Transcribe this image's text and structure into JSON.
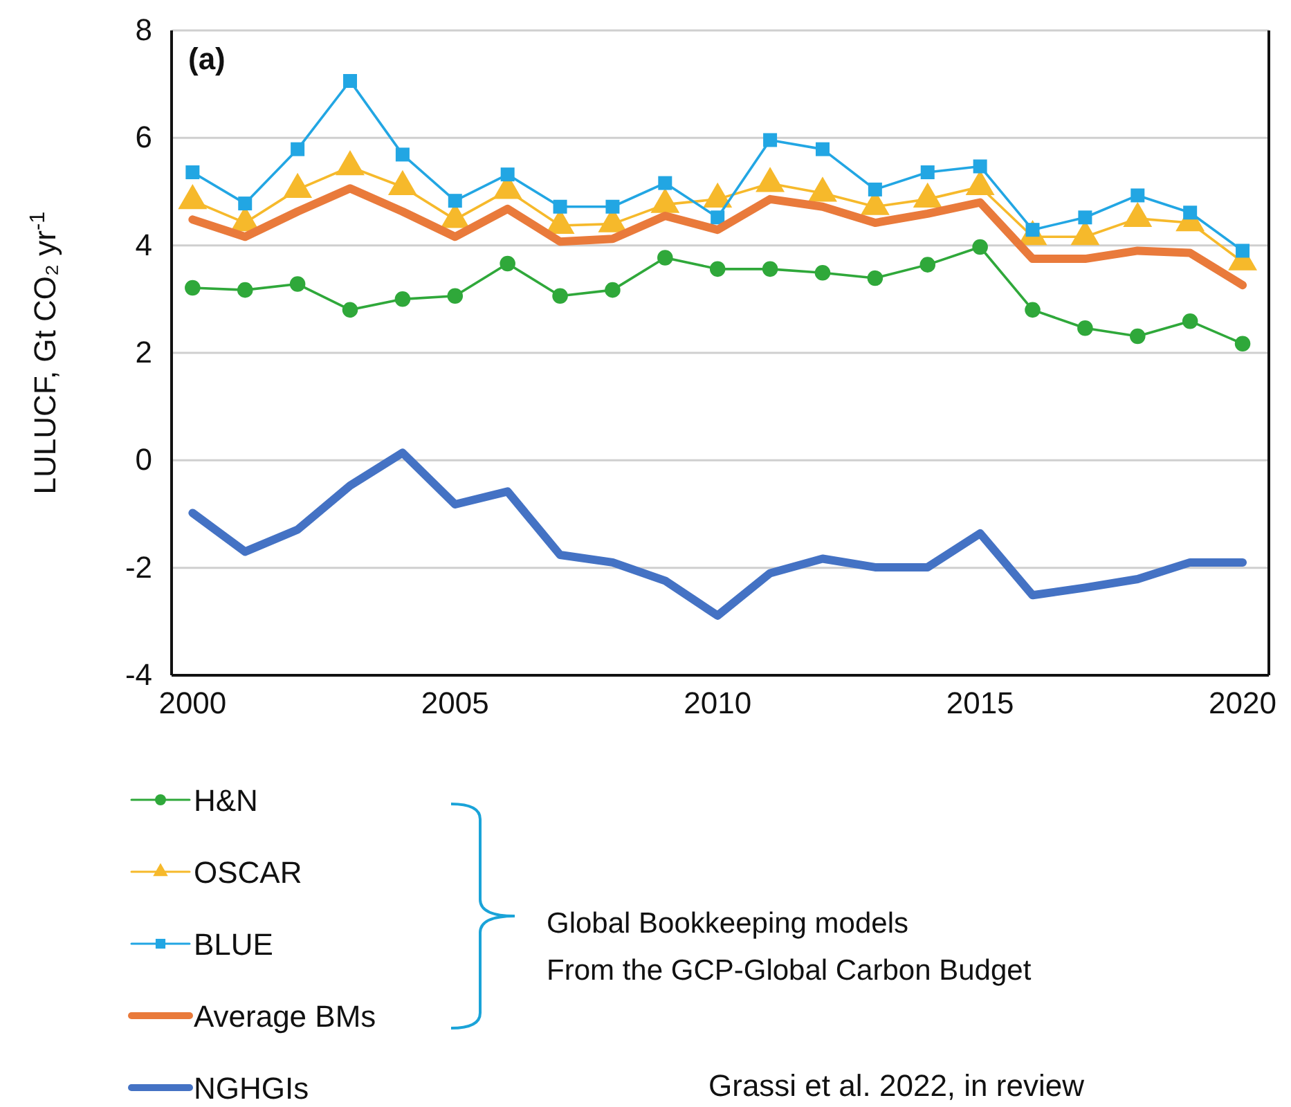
{
  "chart_data": {
    "type": "line",
    "ylabel": "LULUCF, Gt CO₂ yr$^{-1}$",
    "x": [
      2000,
      2001,
      2002,
      2003,
      2004,
      2005,
      2006,
      2007,
      2008,
      2009,
      2010,
      2011,
      2012,
      2013,
      2014,
      2015,
      2016,
      2017,
      2018,
      2019,
      2020
    ],
    "xlim": [
      1999.6,
      2020.5
    ],
    "xticks": [
      2000,
      2005,
      2010,
      2015,
      2020
    ],
    "ylim": [
      -4,
      8
    ],
    "yticks": [
      -4,
      -2,
      0,
      2,
      4,
      6,
      8
    ],
    "grid": "y",
    "legend": "bottom left",
    "annotations": [
      "(a)",
      "Global Bookkeeping models",
      "From the GCP-Global Carbon Budget",
      "Grassi et al. 2022, in review"
    ],
    "series": [
      {
        "name": "H&N",
        "color": "#2fa83a",
        "marker": "circle",
        "values": [
          3.21,
          3.17,
          3.28,
          2.8,
          3.0,
          3.06,
          3.66,
          3.06,
          3.17,
          3.77,
          3.56,
          3.56,
          3.49,
          3.39,
          3.64,
          3.97,
          2.8,
          2.46,
          2.31,
          2.59,
          2.17
        ]
      },
      {
        "name": "OSCAR",
        "color": "#f6b92b",
        "marker": "triangle",
        "values": [
          4.83,
          4.42,
          5.04,
          5.46,
          5.09,
          4.48,
          5.02,
          4.37,
          4.4,
          4.76,
          4.86,
          5.15,
          4.97,
          4.72,
          4.86,
          5.09,
          4.16,
          4.16,
          4.5,
          4.42,
          3.69
        ]
      },
      {
        "name": "BLUE",
        "color": "#22a6e3",
        "marker": "square",
        "values": [
          5.36,
          4.78,
          5.79,
          7.06,
          5.69,
          4.83,
          5.32,
          4.72,
          4.72,
          5.16,
          4.52,
          5.96,
          5.79,
          5.04,
          5.36,
          5.47,
          4.29,
          4.52,
          4.93,
          4.61,
          3.9
        ]
      },
      {
        "name": "Average BMs",
        "color": "#e97a3b",
        "marker": "none",
        "values": [
          4.48,
          4.16,
          4.63,
          5.06,
          4.63,
          4.16,
          4.68,
          4.07,
          4.12,
          4.55,
          4.29,
          4.86,
          4.72,
          4.42,
          4.59,
          4.8,
          3.75,
          3.75,
          3.9,
          3.86,
          3.26
        ]
      },
      {
        "name": "NGHGIs",
        "color": "#4472c4",
        "marker": "none",
        "values": [
          -0.98,
          -1.7,
          -1.29,
          -0.47,
          0.14,
          -0.82,
          -0.58,
          -1.76,
          -1.9,
          -2.24,
          -2.89,
          -2.1,
          -1.83,
          -1.99,
          -1.99,
          -1.36,
          -2.51,
          -2.37,
          -2.21,
          -1.9,
          -1.9
        ]
      }
    ]
  }
}
